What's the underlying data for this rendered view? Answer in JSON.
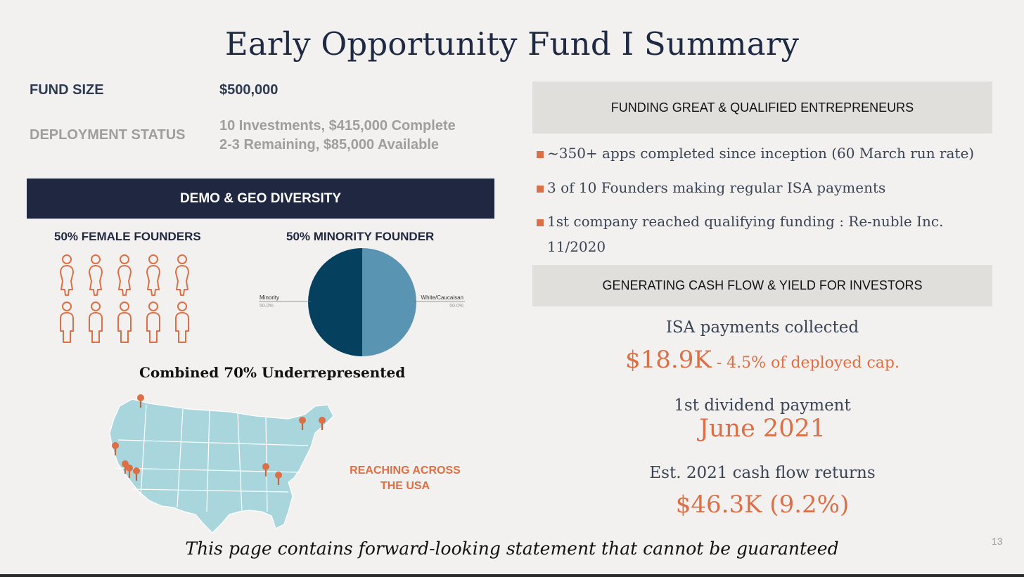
{
  "title": "Early Opportunity Fund I Summary",
  "fund_size": {
    "label": "FUND SIZE",
    "value": "$500,000"
  },
  "deployment_status": {
    "label": "DEPLOYMENT STATUS",
    "line1": "10 Investments, $415,000 Complete",
    "line2": "2-3 Remaining, $85,000 Available"
  },
  "demo_geo": {
    "header": "DEMO & GEO DIVERSITY",
    "female_heading": "50% FEMALE FOUNDERS",
    "minority_heading": "50% MINORITY FOUNDER",
    "female_founder_icon_count": 10,
    "combined": "Combined 70% Underrepresented",
    "reach_line1": "REACHING ACROSS",
    "reach_line2": "THE USA"
  },
  "chart_data": {
    "type": "pie",
    "slices": [
      {
        "label": "Minority",
        "value": 50.0,
        "value_text": "50.0%",
        "color": "#05415f"
      },
      {
        "label": "White/Caucaisan",
        "value": 50.0,
        "value_text": "50.0%",
        "color": "#5a94b3"
      }
    ]
  },
  "funding_section": {
    "header": "FUNDING GREAT & QUALIFIED ENTREPRENEURS",
    "bullets": [
      "~350+ apps completed since inception (60 March run rate)",
      "3 of 10 Founders making regular ISA payments",
      "1st company reached qualifying funding : Re-nuble Inc.",
      "11/2020"
    ]
  },
  "cashflow_section": {
    "header": "GENERATING CASH FLOW & YIELD FOR INVESTORS",
    "isa_label": "ISA payments collected",
    "isa_value": "$18.9K",
    "isa_note": " - 4.5% of deployed cap.",
    "dividend_label": "1st dividend payment",
    "dividend_value": "June 2021",
    "cash_label": "Est. 2021 cash flow returns",
    "cash_value": "$46.3K (9.2%)"
  },
  "footnote": "This page contains forward-looking statement that cannot be guaranteed",
  "page_number": "13",
  "colors": {
    "accent": "#dc6f45",
    "navy": "#1f2741",
    "map": "#a9d6dc",
    "gray_bar": "#e1dfdc"
  }
}
